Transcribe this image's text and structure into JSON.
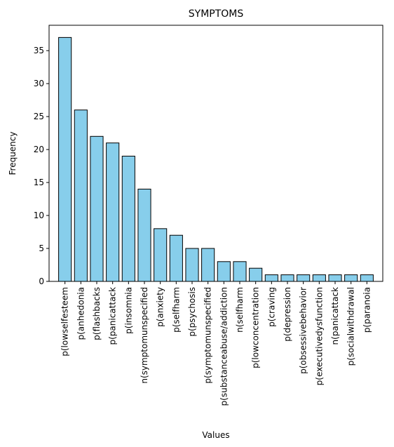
{
  "chart_data": {
    "type": "bar",
    "title": "SYMPTOMS",
    "xlabel": "Values",
    "ylabel": "Frequency",
    "ylim": [
      0,
      38.85
    ],
    "yticks": [
      0,
      5,
      10,
      15,
      20,
      25,
      30,
      35
    ],
    "categories": [
      "p(lowselfesteem",
      "p(anhedonia",
      "p(flashbacks",
      "p(panicattack",
      "p(insomnia",
      "n(symptomunspecified",
      "p(anxiety",
      "p(selfharm",
      "p(psychosis",
      "p(symptomunspecified",
      "p(substanceabuse/addiction",
      "n(selfharm",
      "p(lowconcentration",
      "p(craving",
      "p(depression",
      "p(obsessivebehavior",
      "p(executivedysfunction",
      "n(panicattack",
      "p(socialwithdrawal",
      "p(paranoia"
    ],
    "values": [
      37,
      26,
      22,
      21,
      19,
      14,
      8,
      7,
      5,
      5,
      3,
      3,
      2,
      1,
      1,
      1,
      1,
      1,
      1,
      1
    ],
    "bar_color": "#87ceeb",
    "edge_color": "#000000",
    "grid": false,
    "legend": "none"
  }
}
